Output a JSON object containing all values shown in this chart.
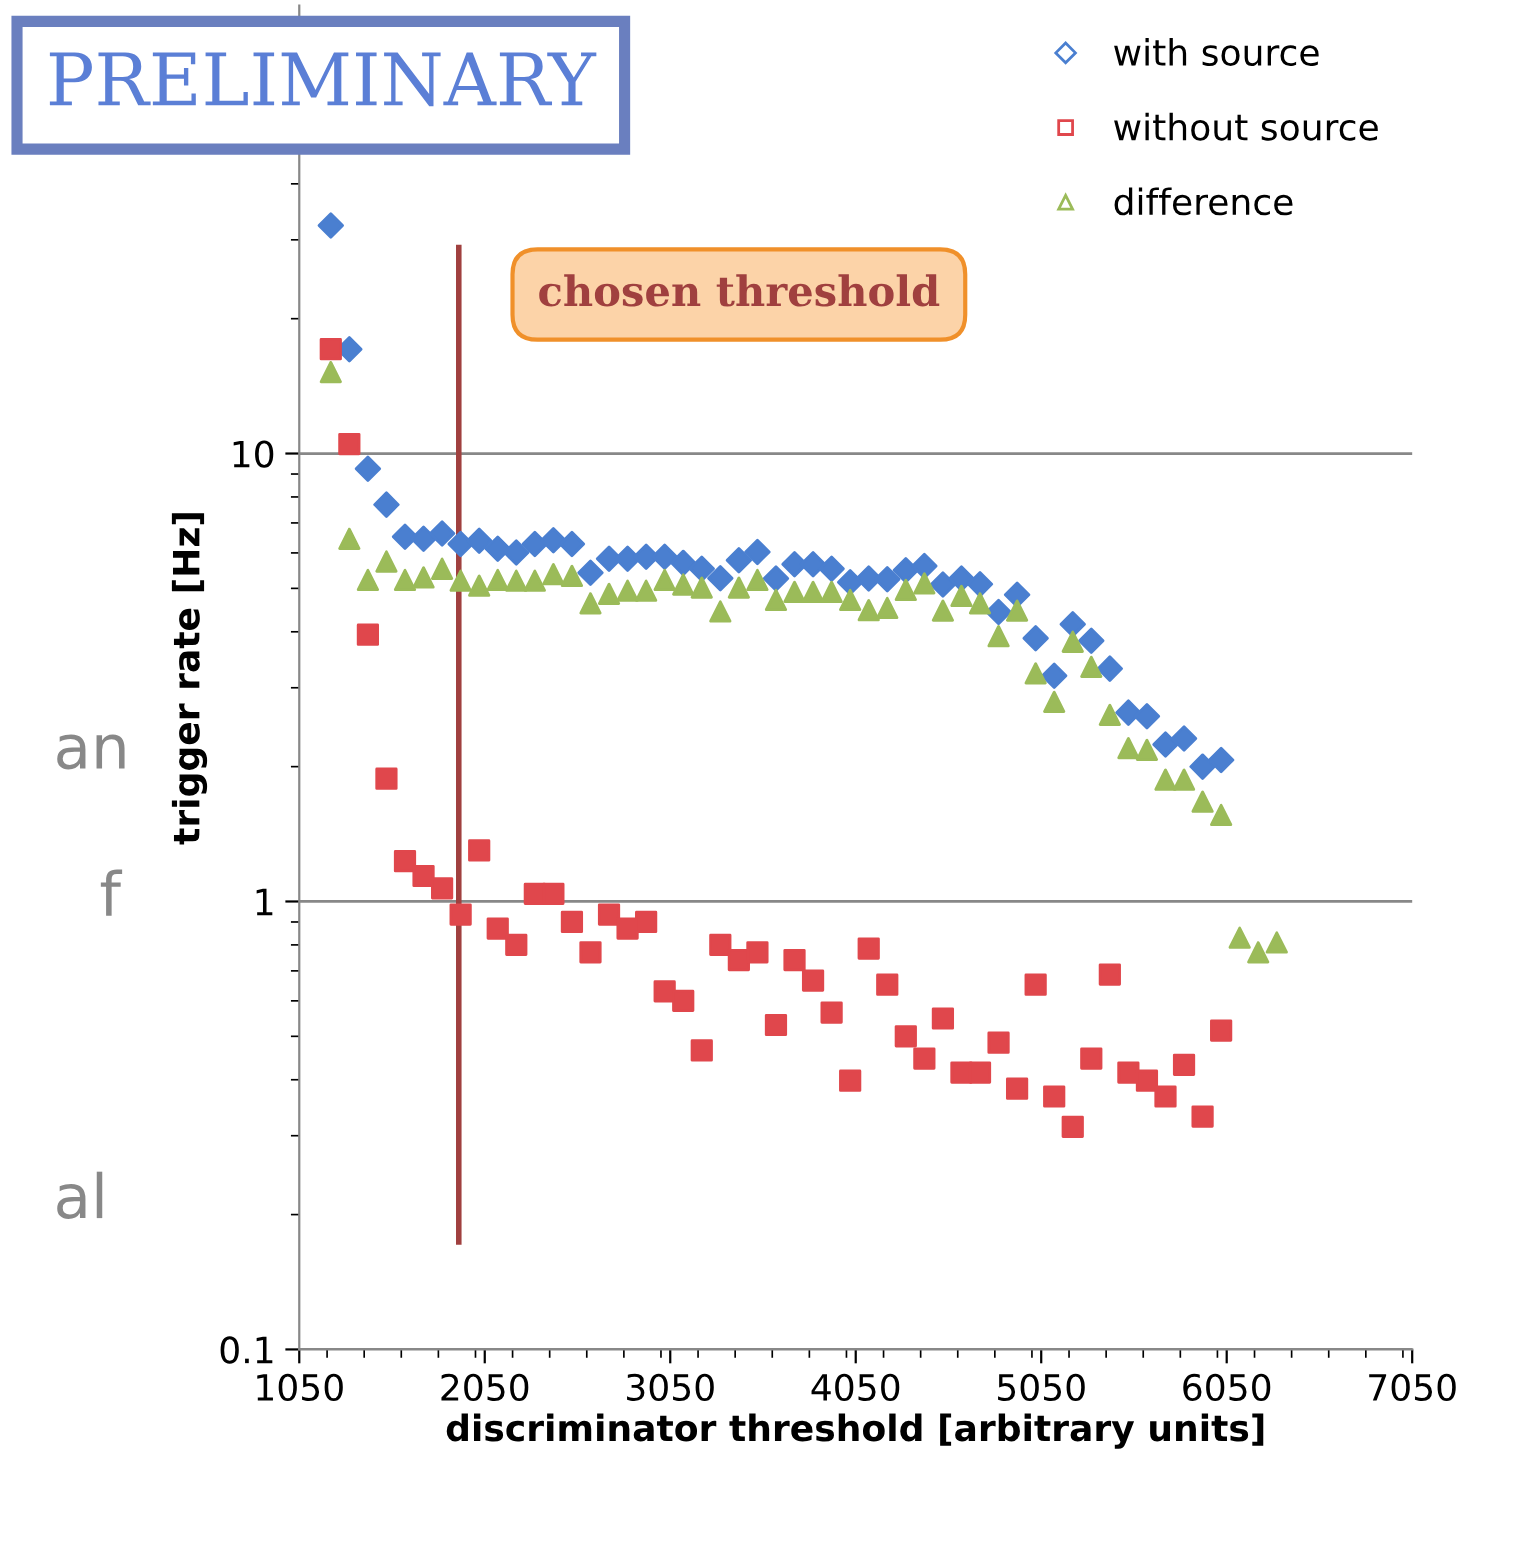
{
  "chart_data": {
    "type": "scatter",
    "xlabel": "discriminator threshold [arbitrary units]",
    "ylabel": "trigger rate [Hz]",
    "log": "y",
    "xlim": [
      1050,
      7050
    ],
    "xticks": [
      1050,
      2050,
      3050,
      4050,
      5050,
      6050,
      7050
    ],
    "ylim": [
      0.1,
      100
    ],
    "yticks": [
      0.1,
      1,
      10
    ],
    "grid": "y",
    "legend": "top right",
    "x": [
      1220,
      1320,
      1420,
      1520,
      1620,
      1720,
      1820,
      1920,
      2020,
      2120,
      2220,
      2320,
      2420,
      2520,
      2620,
      2720,
      2820,
      2920,
      3020,
      3120,
      3220,
      3320,
      3420,
      3520,
      3620,
      3720,
      3820,
      3920,
      4020,
      4120,
      4220,
      4320,
      4420,
      4520,
      4620,
      4720,
      4820,
      4920,
      5020,
      5120,
      5220,
      5320,
      5420,
      5520,
      5620,
      5720,
      5820,
      5920,
      6020,
      6120,
      6220,
      6320
    ],
    "series": [
      {
        "name": "with source",
        "color": "#4a7fd0",
        "marker": "diamond",
        "values": [
          32.3,
          17.1,
          9.25,
          7.69,
          6.52,
          6.45,
          6.63,
          6.28,
          6.39,
          6.13,
          6.01,
          6.28,
          6.4,
          6.28,
          5.42,
          5.82,
          5.82,
          5.88,
          5.88,
          5.7,
          5.53,
          5.27,
          5.78,
          6.03,
          5.26,
          5.66,
          5.66,
          5.53,
          5.16,
          5.26,
          5.24,
          5.49,
          5.61,
          5.1,
          5.26,
          5.11,
          4.43,
          4.84,
          3.87,
          3.19,
          4.16,
          3.82,
          3.31,
          2.64,
          2.59,
          2.24,
          2.31,
          2.0,
          2.07,
          null,
          null,
          null
        ]
      },
      {
        "name": "without source",
        "color": "#e0474c",
        "marker": "square",
        "values": [
          17.1,
          10.5,
          3.94,
          1.88,
          1.23,
          1.14,
          1.07,
          0.935,
          1.3,
          0.87,
          0.8,
          1.04,
          1.04,
          0.9,
          0.77,
          0.935,
          0.87,
          0.9,
          0.63,
          0.6,
          0.465,
          0.8,
          0.74,
          0.77,
          0.53,
          0.74,
          0.666,
          0.565,
          0.398,
          0.785,
          0.652,
          0.5,
          0.446,
          0.548,
          0.415,
          0.415,
          0.484,
          0.382,
          0.652,
          0.367,
          0.314,
          0.446,
          0.687,
          0.415,
          0.398,
          0.367,
          0.432,
          0.331,
          0.515,
          null,
          null,
          null
        ]
      },
      {
        "name": "difference",
        "color": "#9bbb59",
        "marker": "triangle",
        "values": [
          15.2,
          6.45,
          5.22,
          5.74,
          5.22,
          5.29,
          5.53,
          5.2,
          5.07,
          5.22,
          5.2,
          5.2,
          5.38,
          5.33,
          4.63,
          4.86,
          4.94,
          4.94,
          5.22,
          5.1,
          5.02,
          4.44,
          5.02,
          5.22,
          4.71,
          4.91,
          4.91,
          4.91,
          4.71,
          4.47,
          4.52,
          4.96,
          5.13,
          4.46,
          4.81,
          4.63,
          3.91,
          4.46,
          3.23,
          2.79,
          3.8,
          3.34,
          2.61,
          2.2,
          2.18,
          1.87,
          1.87,
          1.67,
          1.56,
          0.83,
          0.77,
          0.81
        ]
      }
    ],
    "ref_lines": [
      {
        "axis": "x",
        "value": 1910,
        "label": "chosen threshold",
        "color": "#a0403f"
      }
    ],
    "annotations": [
      "PRELIMINARY",
      "an",
      "f",
      "al"
    ]
  }
}
